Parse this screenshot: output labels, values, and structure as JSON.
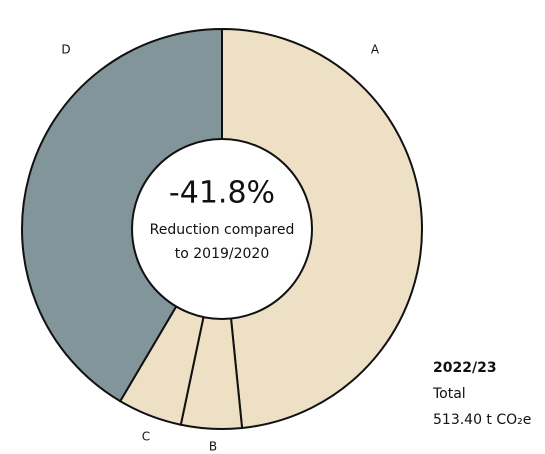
{
  "chart_data": {
    "type": "donut",
    "categories": [
      "A",
      "B",
      "C",
      "D"
    ],
    "values": [
      48.4,
      4.9,
      5.2,
      41.5
    ],
    "colors": [
      "#ede0c4",
      "#ede0c4",
      "#ede0c4",
      "#82959a"
    ],
    "center_value": "-41.8%",
    "center_text": [
      "Reduction compared",
      "to 2019/2020"
    ],
    "summary": {
      "period": "2022/23",
      "label": "Total",
      "total": "513.40 t CO₂e"
    }
  }
}
